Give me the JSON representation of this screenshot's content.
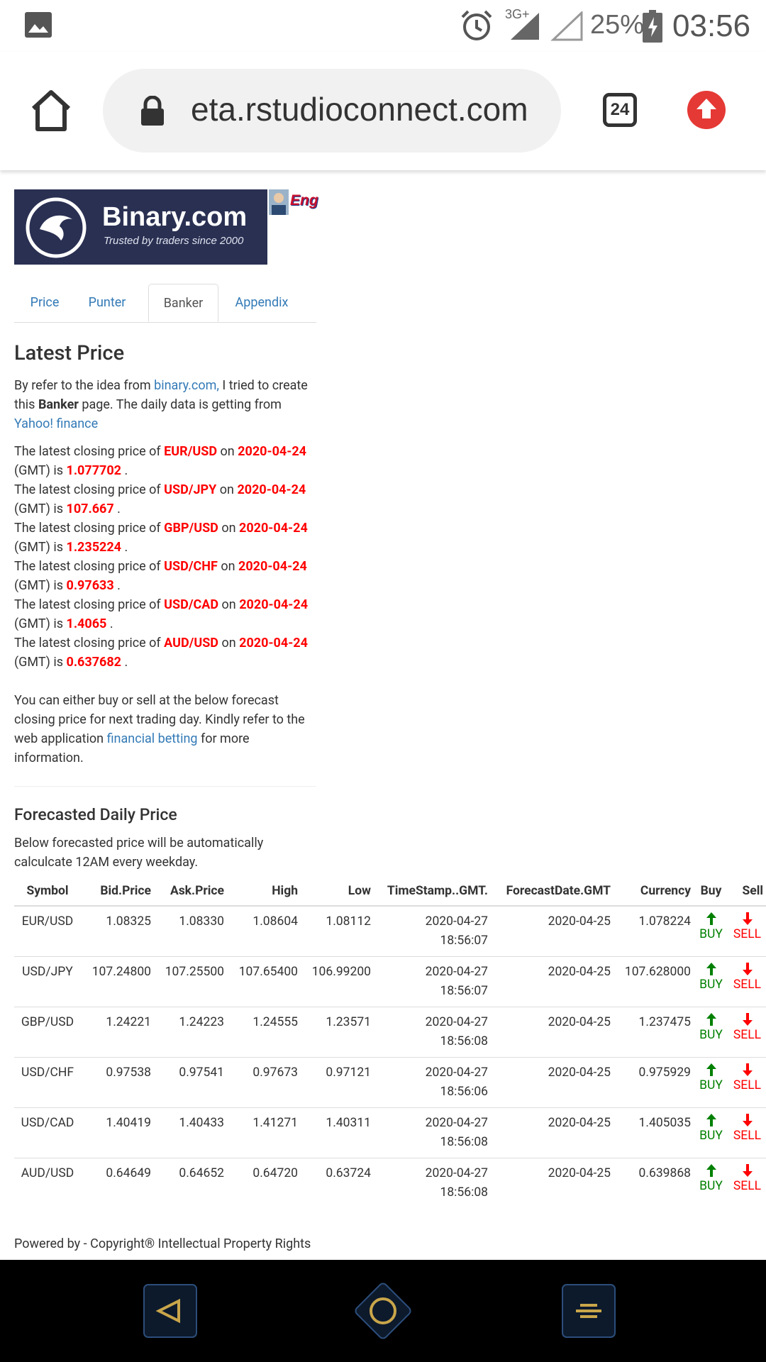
{
  "status_bar": {
    "network": "3G+",
    "battery": "25%",
    "time": "03:56"
  },
  "browser": {
    "url": "eta.rstudioconnect.com",
    "tab_count": "24"
  },
  "logo": {
    "brand": "Binary.com",
    "tagline": "Trusted by traders since 2000",
    "language": "Eng"
  },
  "tabs": [
    "Price",
    "Punter",
    "Banker",
    "Appendix"
  ],
  "active_tab": 2,
  "latest": {
    "heading": "Latest Price",
    "intro": [
      "By refer to the idea from ",
      "binary.com,",
      " I tried to create this ",
      "Banker",
      " page. The daily data is getting from ",
      "Yahoo! finance"
    ],
    "template": [
      "The latest closing price of ",
      " on ",
      " (GMT) is ",
      " ."
    ],
    "items": [
      {
        "symbol": "EUR/USD",
        "date": "2020-04-24",
        "price": "1.077702"
      },
      {
        "symbol": "USD/JPY",
        "date": "2020-04-24",
        "price": "107.667"
      },
      {
        "symbol": "GBP/USD",
        "date": "2020-04-24",
        "price": "1.235224"
      },
      {
        "symbol": "USD/CHF",
        "date": "2020-04-24",
        "price": "0.97633"
      },
      {
        "symbol": "USD/CAD",
        "date": "2020-04-24",
        "price": "1.4065"
      },
      {
        "symbol": "AUD/USD",
        "date": "2020-04-24",
        "price": "0.637682"
      }
    ],
    "note": [
      "You can either buy or sell at the below forecast closing price for next trading day. Kindly refer to the web application ",
      "financial betting",
      " for more information."
    ]
  },
  "forecast": {
    "heading": "Forecasted Daily Price",
    "description": "Below forecasted price will be automatically calculcate 12AM every weekday.",
    "table": {
      "columns": [
        "Symbol",
        "Bid.Price",
        "Ask.Price",
        "High",
        "Low",
        "TimeStamp..GMT.",
        "ForecastDate.GMT",
        "Currency",
        "Buy",
        "Sell"
      ],
      "buy_label": "BUY",
      "sell_label": "SELL",
      "rows": [
        [
          "EUR/USD",
          "1.08325",
          "1.08330",
          "1.08604",
          "1.08112",
          "2020-04-27 18:56:07",
          "2020-04-25",
          "1.078224"
        ],
        [
          "USD/JPY",
          "107.24800",
          "107.25500",
          "107.65400",
          "106.99200",
          "2020-04-27 18:56:07",
          "2020-04-25",
          "107.628000"
        ],
        [
          "GBP/USD",
          "1.24221",
          "1.24223",
          "1.24555",
          "1.23571",
          "2020-04-27 18:56:08",
          "2020-04-25",
          "1.237475"
        ],
        [
          "USD/CHF",
          "0.97538",
          "0.97541",
          "0.97673",
          "0.97121",
          "2020-04-27 18:56:06",
          "2020-04-25",
          "0.975929"
        ],
        [
          "USD/CAD",
          "1.40419",
          "1.40433",
          "1.41271",
          "1.40311",
          "2020-04-27 18:56:08",
          "2020-04-25",
          "1.405035"
        ],
        [
          "AUD/USD",
          "0.64649",
          "0.64652",
          "0.64720",
          "0.63724",
          "2020-04-27 18:56:08",
          "2020-04-25",
          "0.639868"
        ]
      ]
    }
  },
  "footer": "Powered by - Copyright® Intellectual Property Rights"
}
